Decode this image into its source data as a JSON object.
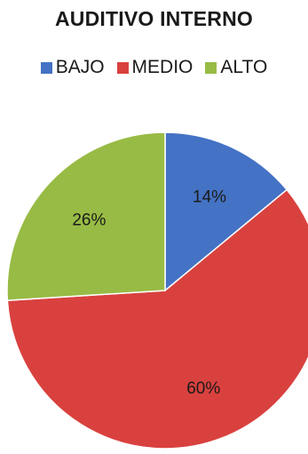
{
  "chart_data": {
    "type": "pie",
    "title": "AUDITIVO INTERNO",
    "legend_position": "top",
    "slices": [
      {
        "label": "BAJO",
        "value": 14,
        "display": "14%",
        "color": "#4472c4"
      },
      {
        "label": "MEDIO",
        "value": 60,
        "display": "60%",
        "color": "#d9413e"
      },
      {
        "label": "ALTO",
        "value": 26,
        "display": "26%",
        "color": "#98bb45"
      }
    ]
  }
}
